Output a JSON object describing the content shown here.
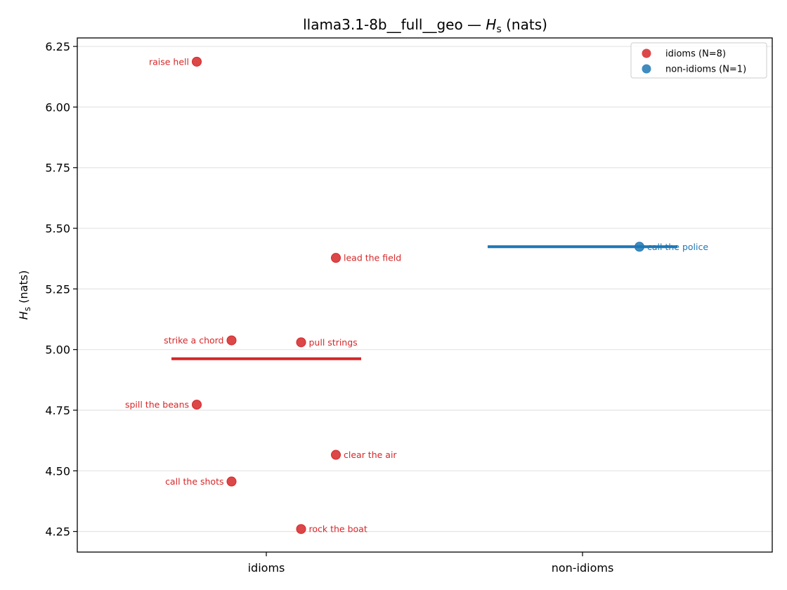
{
  "chart_data": {
    "type": "scatter",
    "title": "llama3.1-8b__full__geo — H_s (nats)",
    "title_parts": {
      "prefix": "llama3.1-8b__full__geo — ",
      "symbol": "H",
      "subscript": "s",
      "suffix": " (nats)"
    },
    "ylabel": "H_s (nats)",
    "ylabel_parts": {
      "symbol": "H",
      "subscript": "s",
      "suffix": " (nats)"
    },
    "categories": [
      "idioms",
      "non-idioms"
    ],
    "ylim": [
      4.165,
      6.285
    ],
    "yticks": [
      "4.25",
      "4.50",
      "4.75",
      "5.00",
      "5.25",
      "5.50",
      "5.75",
      "6.00",
      "6.25"
    ],
    "grid": "horizontal",
    "legend_position": "top-right",
    "series": [
      {
        "name": "idioms (N=8)",
        "category": "idioms",
        "color": "#d62728",
        "mean": 4.962,
        "points": [
          {
            "label": "raise hell",
            "y": 6.187,
            "side": "left",
            "offset": -0.22
          },
          {
            "label": "lead the field",
            "y": 5.378,
            "side": "right",
            "offset": 0.22
          },
          {
            "label": "strike a chord",
            "y": 5.038,
            "side": "left",
            "offset": -0.11
          },
          {
            "label": "pull strings",
            "y": 5.03,
            "side": "right",
            "offset": 0.11
          },
          {
            "label": "spill the beans",
            "y": 4.773,
            "side": "left",
            "offset": -0.22
          },
          {
            "label": "clear the air",
            "y": 4.566,
            "side": "right",
            "offset": 0.22
          },
          {
            "label": "call the shots",
            "y": 4.456,
            "side": "left",
            "offset": -0.11
          },
          {
            "label": "rock the boat",
            "y": 4.26,
            "side": "right",
            "offset": 0.11
          }
        ]
      },
      {
        "name": "non-idioms (N=1)",
        "category": "non-idioms",
        "color": "#1f77b4",
        "mean": 5.424,
        "points": [
          {
            "label": "call the police",
            "y": 5.424,
            "side": "right",
            "offset": 0.18
          }
        ]
      }
    ]
  }
}
